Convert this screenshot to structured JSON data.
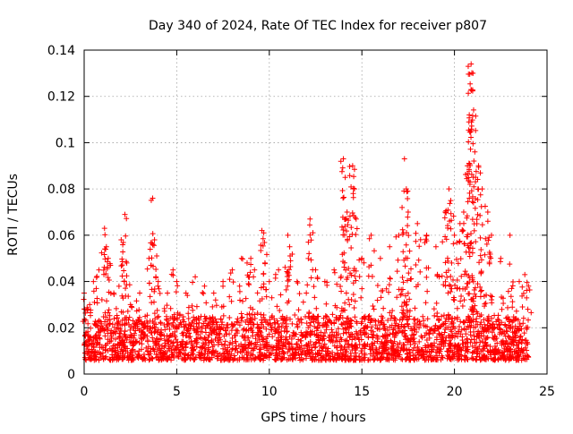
{
  "chart_data": {
    "type": "scatter",
    "title": "Day 340 of 2024, Rate Of TEC Index for receiver p807",
    "xlabel": "GPS time / hours",
    "ylabel": "ROTI / TECUs",
    "xlim": [
      0,
      25
    ],
    "ylim": [
      0,
      0.14
    ],
    "x_ticks": [
      0,
      5,
      10,
      15,
      20,
      25
    ],
    "x_tick_labels": [
      "0",
      "5",
      "10",
      "15",
      "20",
      "25"
    ],
    "y_ticks": [
      0,
      0.02,
      0.04,
      0.06,
      0.08,
      0.1,
      0.12,
      0.14
    ],
    "y_tick_labels": [
      "0",
      "0.02",
      "0.04",
      "0.06",
      "0.08",
      "0.1",
      "0.12",
      "0.14"
    ],
    "grid": true,
    "marker": "+",
    "series": [
      {
        "name": "ROTI",
        "color": "#ff0000",
        "x": [
          0.0,
          0.1,
          0.2,
          0.3,
          0.5,
          0.8,
          1.1,
          1.2,
          1.3,
          1.6,
          2.0,
          2.2,
          2.3,
          2.5,
          3.0,
          3.5,
          3.7,
          3.8,
          4.0,
          4.5,
          4.8,
          5.0,
          5.5,
          6.0,
          6.5,
          7.0,
          7.5,
          8.0,
          8.5,
          8.8,
          9.0,
          9.2,
          9.6,
          9.7,
          10.0,
          10.5,
          11.0,
          11.1,
          11.5,
          12.0,
          12.2,
          12.5,
          13.0,
          13.5,
          14.0,
          14.1,
          14.2,
          14.5,
          14.6,
          15.0,
          15.5,
          16.0,
          16.5,
          17.0,
          17.3,
          17.4,
          17.5,
          18.0,
          18.5,
          19.0,
          19.5,
          19.7,
          19.8,
          20.0,
          20.3,
          20.5,
          20.7,
          20.8,
          20.9,
          21.0,
          21.1,
          21.3,
          21.5,
          21.8,
          22.0,
          22.5,
          23.0,
          23.5,
          23.8,
          24.0
        ],
        "values": [
          0.035,
          0.018,
          0.028,
          0.03,
          0.04,
          0.045,
          0.063,
          0.055,
          0.05,
          0.035,
          0.058,
          0.069,
          0.048,
          0.03,
          0.035,
          0.05,
          0.076,
          0.058,
          0.04,
          0.035,
          0.045,
          0.04,
          0.035,
          0.042,
          0.038,
          0.035,
          0.04,
          0.045,
          0.05,
          0.048,
          0.05,
          0.045,
          0.062,
          0.061,
          0.04,
          0.045,
          0.06,
          0.055,
          0.04,
          0.035,
          0.067,
          0.045,
          0.04,
          0.045,
          0.093,
          0.085,
          0.07,
          0.09,
          0.08,
          0.05,
          0.06,
          0.05,
          0.055,
          0.06,
          0.093,
          0.08,
          0.07,
          0.065,
          0.06,
          0.055,
          0.07,
          0.08,
          0.075,
          0.06,
          0.065,
          0.07,
          0.09,
          0.112,
          0.134,
          0.13,
          0.096,
          0.09,
          0.08,
          0.07,
          0.06,
          0.05,
          0.06,
          0.04,
          0.043,
          0.038
        ]
      }
    ],
    "baseline_band": [
      0.006,
      0.025
    ],
    "notes": "Dense cloud of + markers between ~0.005 and ~0.025 across all hours; listed values are the visible upper excursions."
  }
}
